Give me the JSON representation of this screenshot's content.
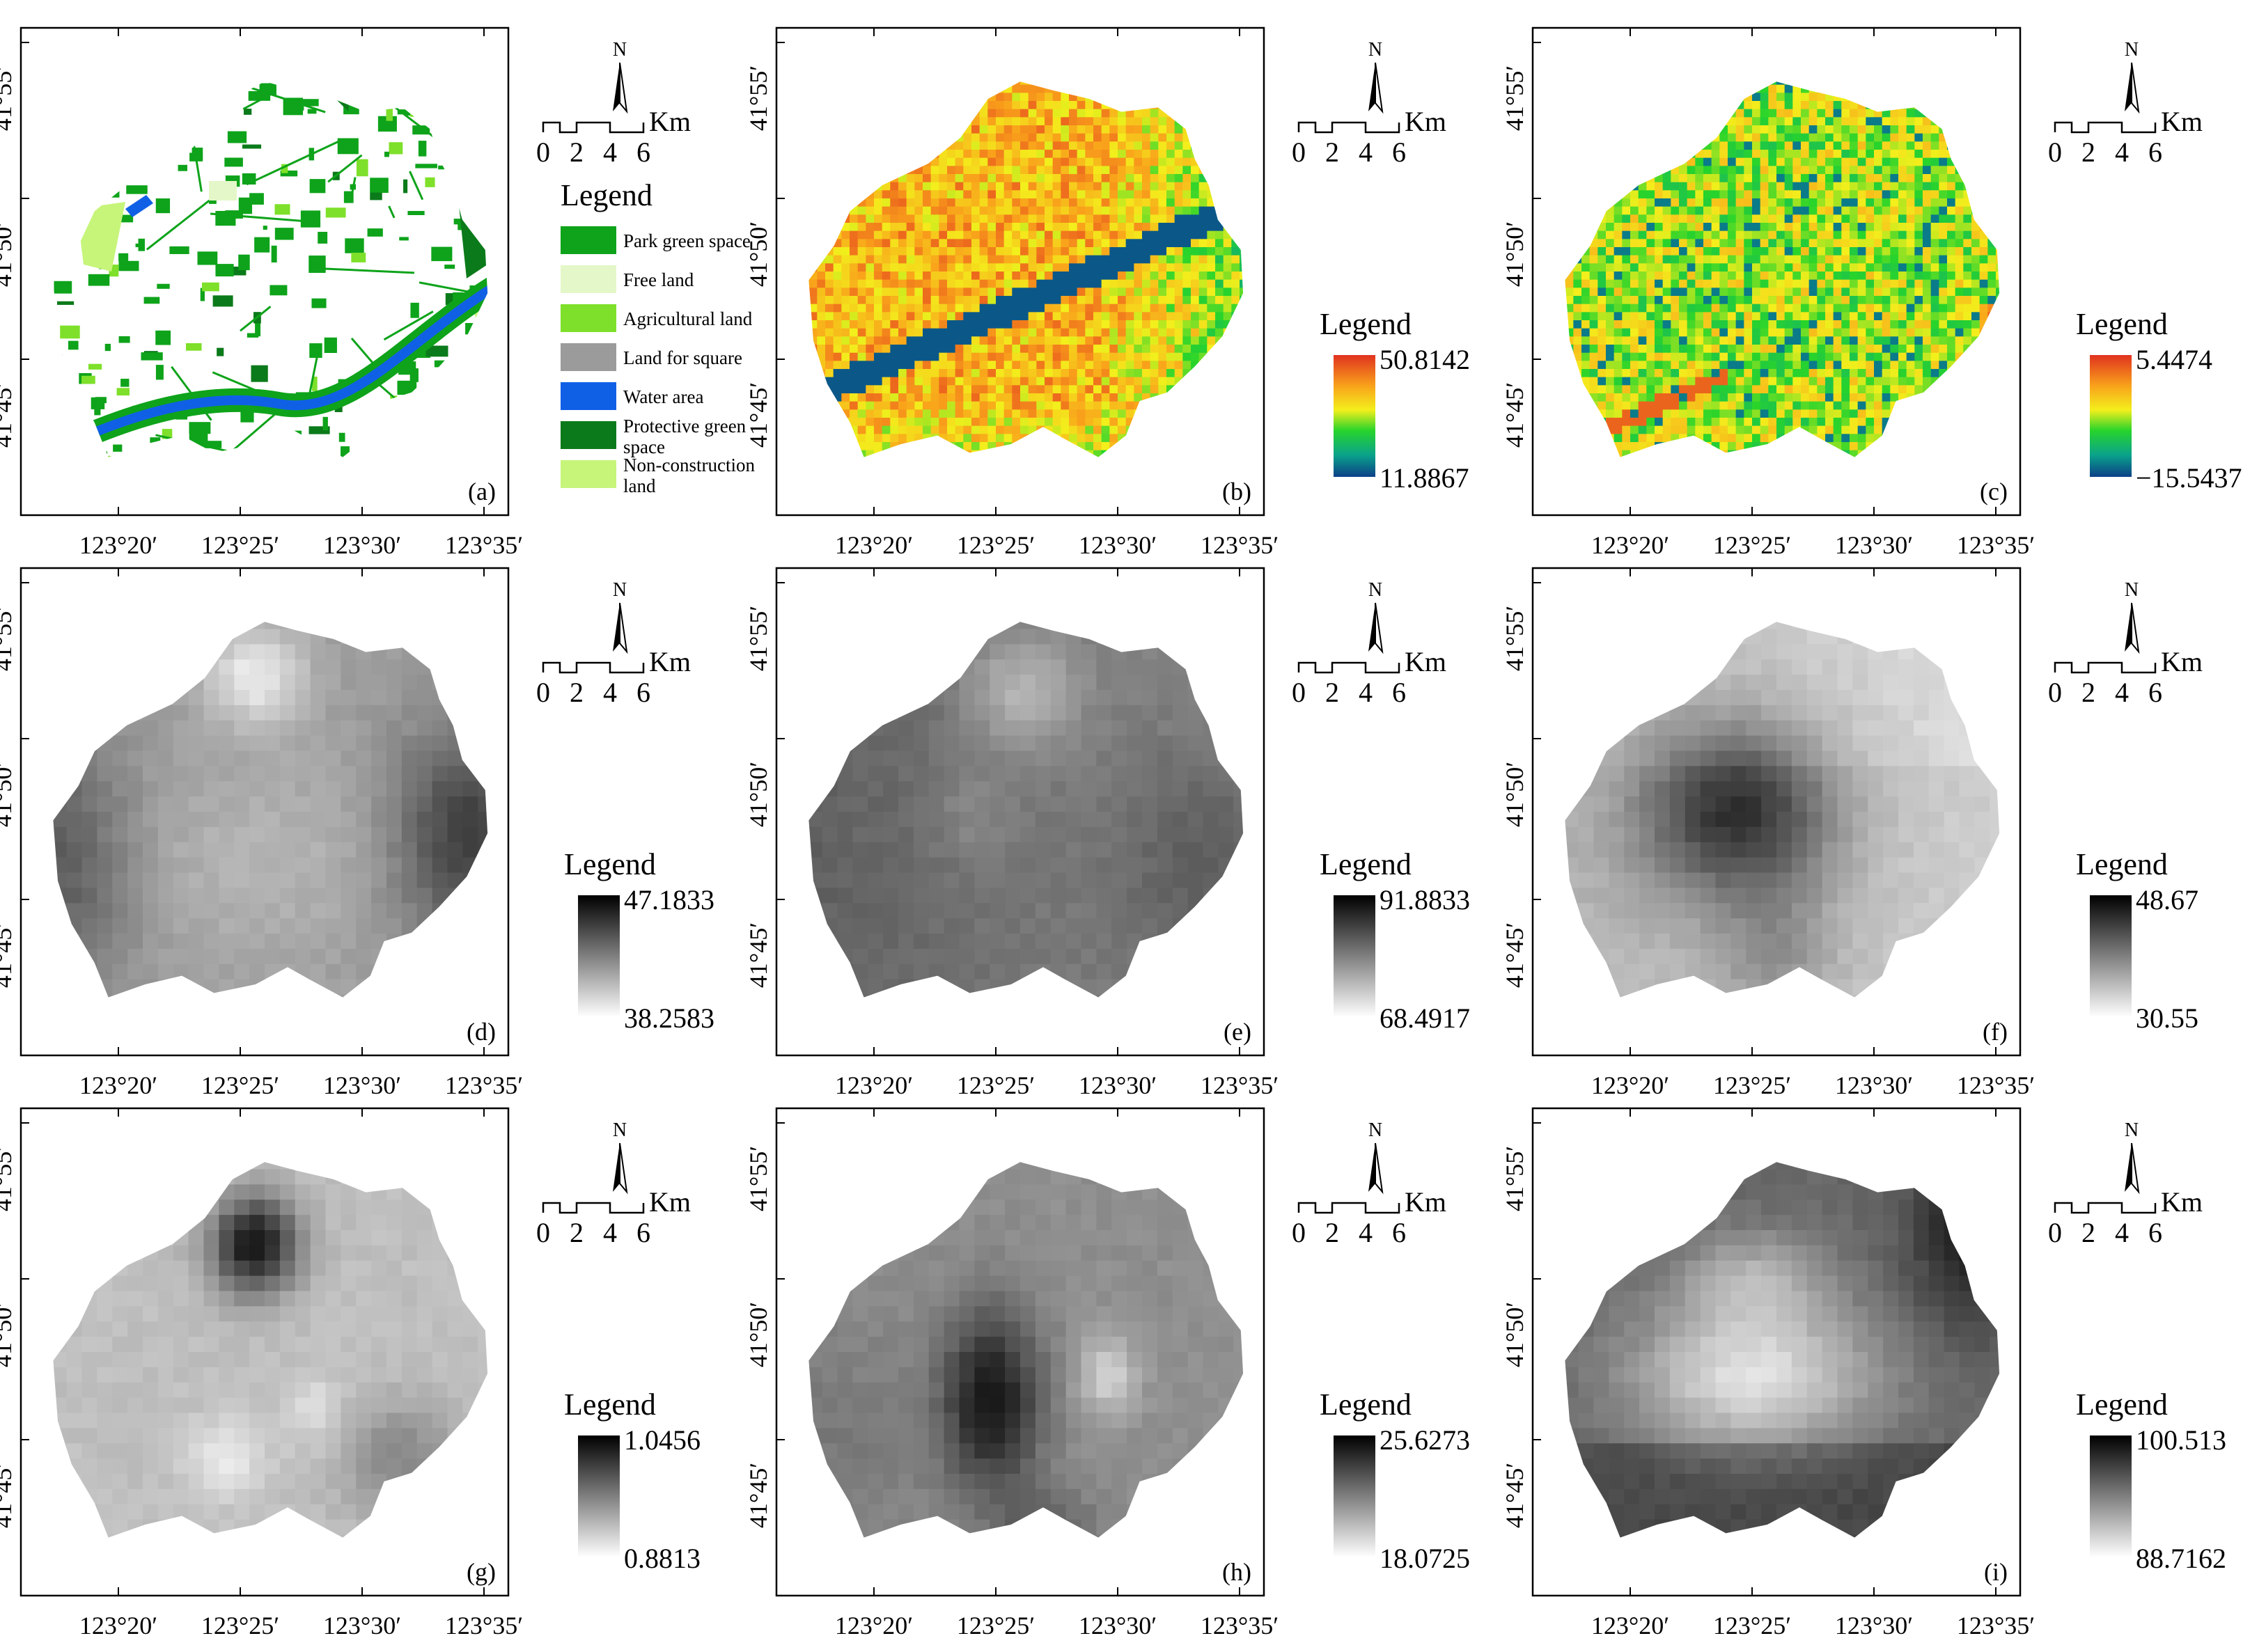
{
  "lon_ticks": [
    "123°20′",
    "123°25′",
    "123°30′",
    "123°35′"
  ],
  "lat_ticks": [
    "41°55′",
    "41°50′",
    "41°45′"
  ],
  "north_label": "N",
  "scale": {
    "unit": "Km",
    "ticks": [
      "0",
      "2",
      "4",
      "6"
    ]
  },
  "legend_title": "Legend",
  "landuse_legend": [
    {
      "label": "Park green space",
      "color": "#0ea31a"
    },
    {
      "label": "Free land",
      "color": "#e4f7c8"
    },
    {
      "label": "Agricultural land",
      "color": "#7ee02a"
    },
    {
      "label": "Land for square",
      "color": "#9b9b9b"
    },
    {
      "label": "Water area",
      "color": "#1060e6"
    },
    {
      "label": "Protective green space",
      "label_lines": [
        "Protective green",
        "space"
      ],
      "color": "#0b7a1a"
    },
    {
      "label": "Non-construction land",
      "label_lines": [
        "Non-construction",
        "land"
      ],
      "color": "#c6f57a"
    }
  ],
  "panels": [
    {
      "id": "a",
      "label": "(a)",
      "kind": "landuse"
    },
    {
      "id": "b",
      "label": "(b)",
      "kind": "color",
      "max": "50.8142",
      "min": "11.8867"
    },
    {
      "id": "c",
      "label": "(c)",
      "kind": "color",
      "max": "5.4474",
      "min": "−15.5437"
    },
    {
      "id": "d",
      "label": "(d)",
      "kind": "gray",
      "max": "47.1833",
      "min": "38.2583"
    },
    {
      "id": "e",
      "label": "(e)",
      "kind": "gray",
      "max": "91.8833",
      "min": "68.4917"
    },
    {
      "id": "f",
      "label": "(f)",
      "kind": "gray",
      "max": "48.67",
      "min": "30.55"
    },
    {
      "id": "g",
      "label": "(g)",
      "kind": "gray",
      "max": "1.0456",
      "min": "0.8813"
    },
    {
      "id": "h",
      "label": "(h)",
      "kind": "gray",
      "max": "25.6273",
      "min": "18.0725"
    },
    {
      "id": "i",
      "label": "(i)",
      "kind": "gray",
      "max": "100.513",
      "min": "88.7162"
    }
  ]
}
